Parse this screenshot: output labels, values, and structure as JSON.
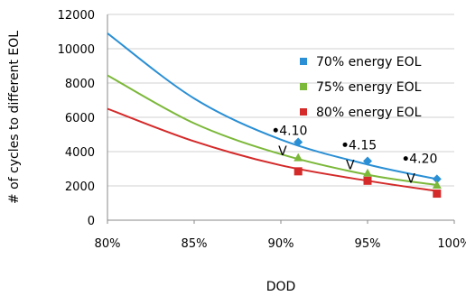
{
  "chart_data": {
    "type": "line",
    "title": "",
    "xlabel": "DOD",
    "ylabel": "# of cycles to different EOL",
    "xlim": [
      0.8,
      1.0
    ],
    "ylim": [
      0,
      12000
    ],
    "xticks": [
      0.8,
      0.85,
      0.9,
      0.95,
      1.0
    ],
    "xtick_labels": [
      "80%",
      "85%",
      "90%",
      "95%",
      "100%"
    ],
    "yticks": [
      0,
      2000,
      4000,
      6000,
      8000,
      10000,
      12000
    ],
    "ytick_labels": [
      "0",
      "2000",
      "4000",
      "6000",
      "8000",
      "10000",
      "12000"
    ],
    "grid": "horizontal",
    "legend_position": "right",
    "series": [
      {
        "name": "70% energy EOL",
        "color": "#2a8fd4",
        "marker": "diamond",
        "curve": {
          "x": [
            0.8,
            0.85,
            0.9,
            0.95,
            0.99
          ],
          "y": [
            10900,
            7100,
            4700,
            3250,
            2400
          ]
        },
        "points": {
          "x": [
            0.91,
            0.95,
            0.99
          ],
          "y": [
            4550,
            3450,
            2400
          ]
        }
      },
      {
        "name": "75% energy EOL",
        "color": "#7cb83a",
        "marker": "triangle",
        "curve": {
          "x": [
            0.8,
            0.85,
            0.9,
            0.95,
            0.99
          ],
          "y": [
            8450,
            5650,
            3850,
            2650,
            2050
          ]
        },
        "points": {
          "x": [
            0.91,
            0.95,
            0.99
          ],
          "y": [
            3650,
            2750,
            2050
          ]
        }
      },
      {
        "name": "80% energy EOL",
        "color": "#d42a2a",
        "marker": "square",
        "curve": {
          "x": [
            0.8,
            0.85,
            0.9,
            0.95,
            0.99
          ],
          "y": [
            6500,
            4600,
            3200,
            2300,
            1700
          ]
        },
        "points": {
          "x": [
            0.91,
            0.95,
            0.99
          ],
          "y": [
            2850,
            2300,
            1550
          ]
        }
      }
    ],
    "annotations": [
      {
        "text": "4.10",
        "x": 0.897,
        "y": 5250
      },
      {
        "text": "4.15",
        "x": 0.937,
        "y": 4400
      },
      {
        "text": "4.20",
        "x": 0.972,
        "y": 3600
      }
    ],
    "arrows": [
      {
        "text": "V",
        "x": 0.901,
        "y": 4100
      },
      {
        "text": "V",
        "x": 0.94,
        "y": 3300
      },
      {
        "text": "V",
        "x": 0.975,
        "y": 2500
      }
    ]
  }
}
